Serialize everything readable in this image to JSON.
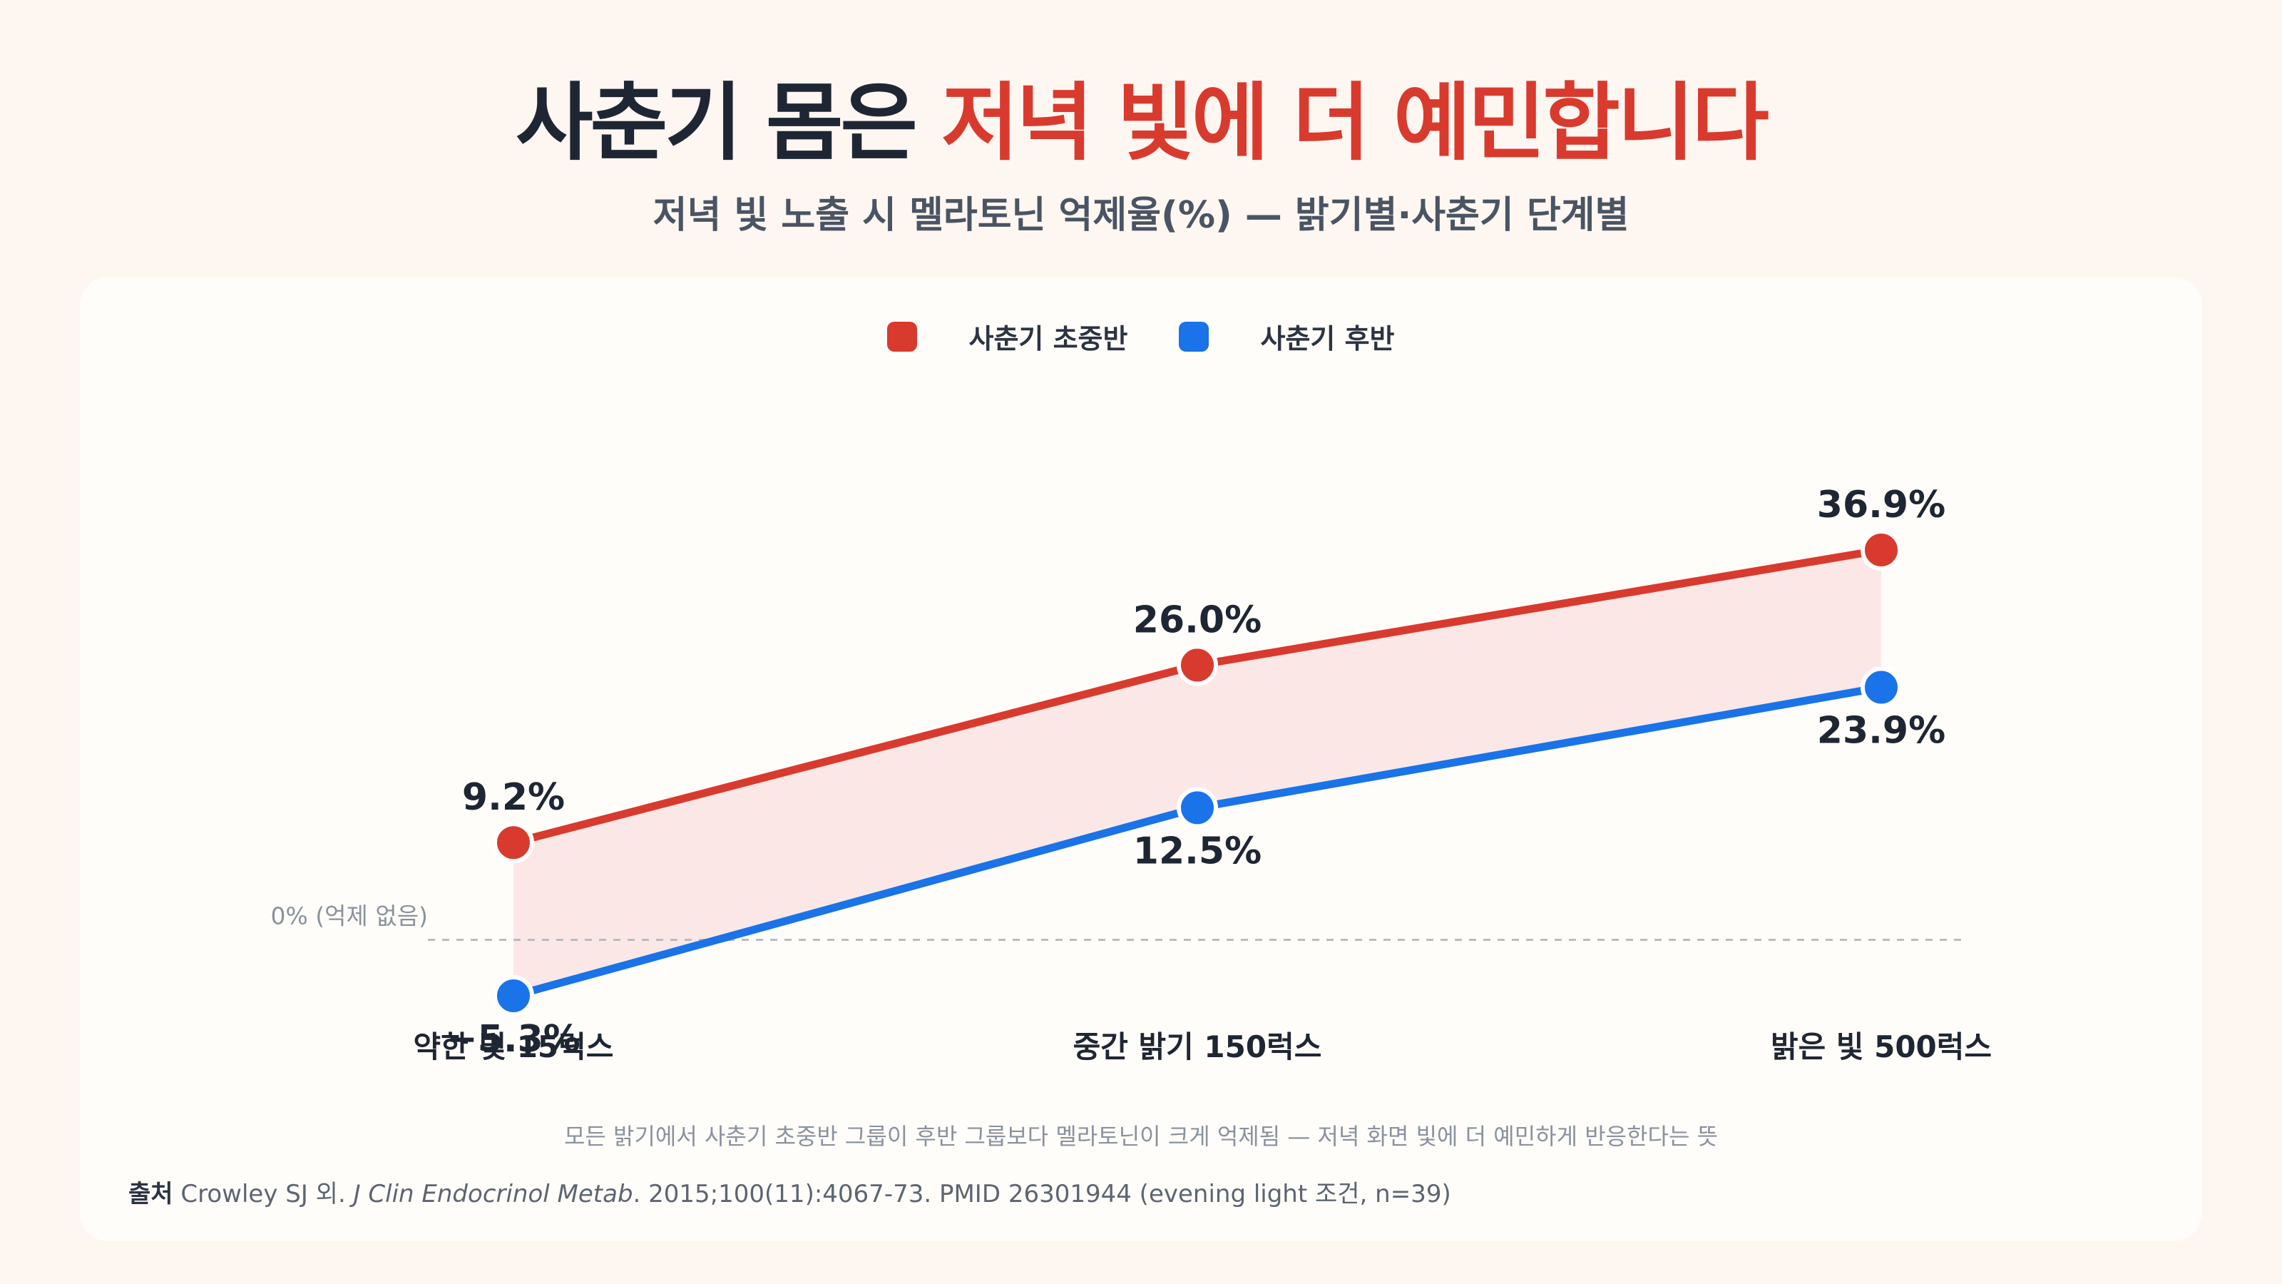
{
  "title": {
    "part1": "사춘기 몸은 ",
    "part2": "저녁 빛에 더 예민합니다"
  },
  "subtitle": "저녁 빛 노출 시 멜라토닌 억제율(%) — 밝기별·사춘기 단계별",
  "colors": {
    "early": "#d93a2e",
    "late": "#1a73e8",
    "band": "#fbe6e3"
  },
  "chart_data": {
    "type": "line",
    "categories": [
      "약한 빛 15럭스",
      "중간 밝기 150럭스",
      "밝은 빛 500럭스"
    ],
    "series": [
      {
        "name": "사춘기 초중반",
        "values": [
          9.2,
          26.0,
          36.9
        ],
        "labels": [
          "9.2%",
          "26.0%",
          "36.9%"
        ]
      },
      {
        "name": "사춘기 후반",
        "values": [
          -5.3,
          12.5,
          23.9
        ],
        "labels": [
          "−5.3%",
          "12.5%",
          "23.9%"
        ]
      }
    ],
    "ylim": [
      -8,
      42
    ],
    "zero_line_label": "0% (억제 없음)",
    "legend_position": "top-center",
    "grid": false
  },
  "footnote": "모든 밝기에서 사춘기 초중반 그룹이 후반 그룹보다 멜라토닌이 크게 억제됨 — 저녁 화면 빛에 더 예민하게 반응한다는 뜻",
  "source": {
    "label": "출처",
    "authors": "Crowley SJ 외.",
    "journal": "J Clin Endocrinol Metab",
    "details": ". 2015;100(11):4067-73. PMID 26301944 (evening light 조건, n=39)"
  }
}
